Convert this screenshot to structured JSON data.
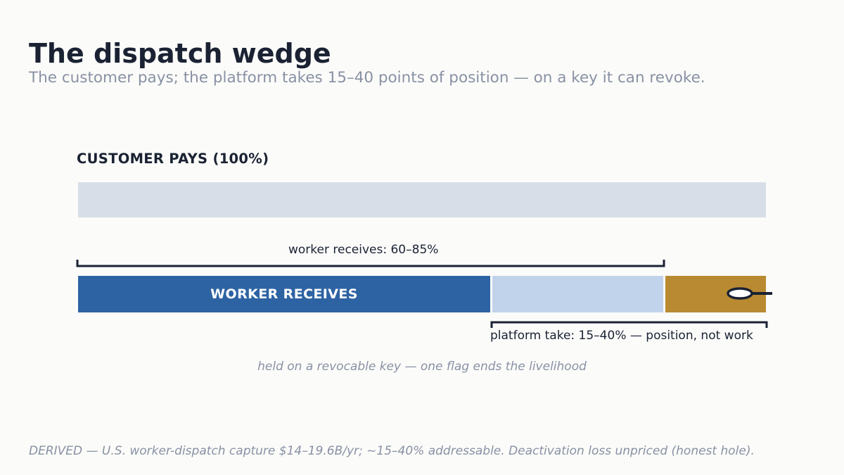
{
  "header": {
    "title": "The dispatch wedge",
    "subtitle": "The customer pays; the platform takes 15–40 points of position — on a key it can revoke."
  },
  "diagram": {
    "customer_label": "CUSTOMER PAYS  (100%)",
    "worker_segment_label": "WORKER RECEIVES",
    "worker_bracket_label": "worker receives: 60–85%",
    "platform_bracket_label": "platform take: 15–40% — position, not work",
    "key_note": "held on a revocable key — one flag ends the livelihood",
    "icon": "key-icon",
    "colors": {
      "customer_bar": "#d8dee8",
      "worker": "#2e63a3",
      "contested": "#c1d3ea",
      "platform": "#b98a31",
      "ink": "#1a2233"
    }
  },
  "footer": {
    "source": "DERIVED — U.S. worker-dispatch capture $14–19.6B/yr; ~15–40% addressable. Deactivation loss unpriced (honest hole)."
  }
}
